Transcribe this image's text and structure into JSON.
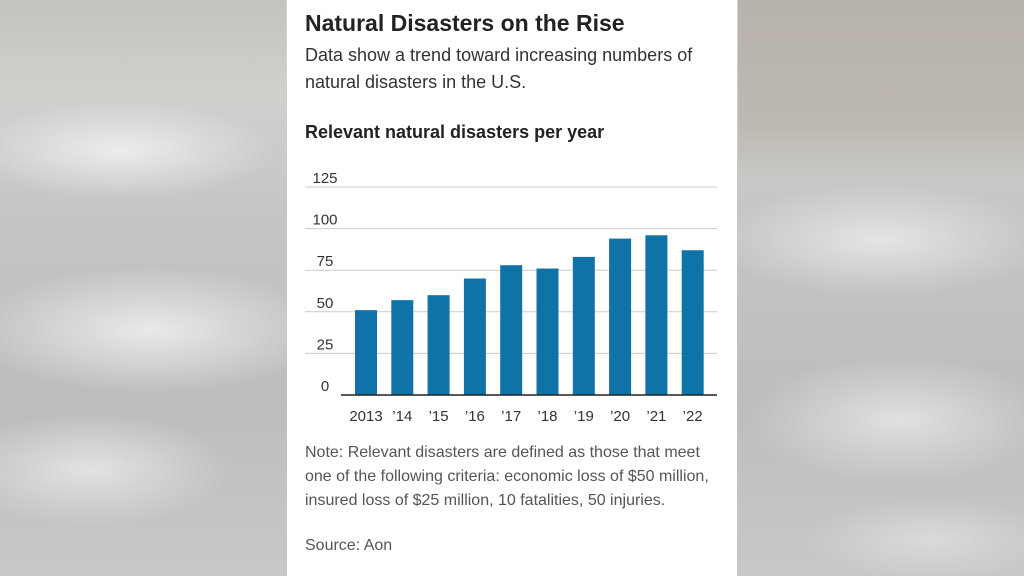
{
  "header": {
    "title": "Natural Disasters on the Rise",
    "subtitle": "Data show a trend toward increasing numbers of natural disasters in the U.S."
  },
  "chart_data": {
    "type": "bar",
    "title": "Relevant natural disasters per year",
    "xlabel": "",
    "ylabel": "",
    "categories": [
      "2013",
      "’14",
      "’15",
      "’16",
      "’17",
      "’18",
      "’19",
      "’20",
      "’21",
      "’22"
    ],
    "values": [
      51,
      57,
      60,
      70,
      78,
      76,
      83,
      94,
      96,
      87
    ],
    "yticks": [
      0,
      25,
      50,
      75,
      100,
      125
    ],
    "ylim": [
      0,
      125
    ],
    "grid": true,
    "bar_color": "#0f73a8"
  },
  "footer": {
    "note": "Note: Relevant disasters are defined as those that meet one of the following criteria: economic loss of $50 million, insured loss of $25 million, 10 fatalities, 50 injuries.",
    "source": "Source: Aon"
  },
  "colors": {
    "panel": "#ffffff",
    "bar": "#0f73a8",
    "grid": "#cccccc",
    "axis": "#222222"
  }
}
